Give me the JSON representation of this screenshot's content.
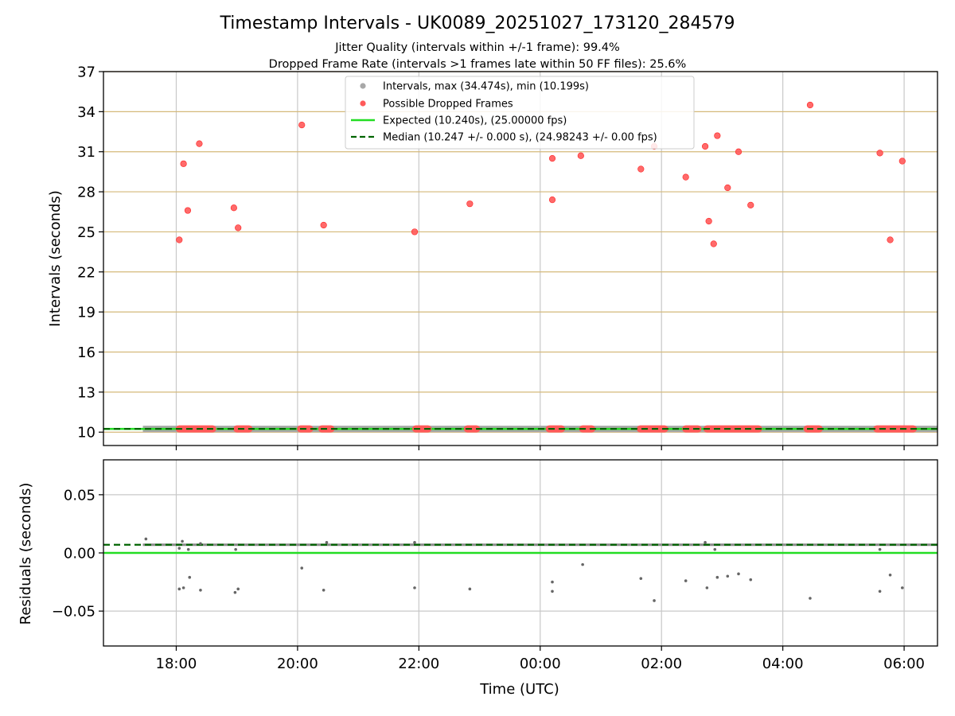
{
  "title": "Timestamp Intervals - UK0089_20251027_173120_284579",
  "subtitle_jitter": "Jitter Quality (intervals within +/-1 frame): 99.4%",
  "subtitle_dropped": "Dropped Frame Rate (intervals >1 frames late within 50 FF files): 25.6%",
  "colors": {
    "dropped": "#ff5a5a",
    "interval": "#a8a8a8",
    "expected": "#22dd22",
    "median": "#006400",
    "grid_h_top": "#d4b97a",
    "grid": "#c8c8c8",
    "residual_point": "#666666"
  },
  "chart_data": [
    {
      "id": "intervals",
      "type": "scatter",
      "ylabel": "Intervals (seconds)",
      "ylim": [
        9,
        37
      ],
      "yticks": [
        "10",
        "13",
        "16",
        "19",
        "22",
        "25",
        "28",
        "31",
        "34",
        "37"
      ],
      "ytick_values": [
        10,
        13,
        16,
        19,
        22,
        25,
        28,
        31,
        34,
        37
      ],
      "xlim": [
        -7.2,
        6.55
      ],
      "xtick_values": [
        -6,
        -4,
        -2,
        0,
        2,
        4,
        6
      ],
      "grid": "vertical and horizontal",
      "legend": {
        "placement": "top-center",
        "entries": [
          "Intervals, max (34.474s), min (10.199s)",
          "Possible Dropped Frames",
          "Expected (10.240s), (25.00000 fps)",
          "Median (10.247 +/- 0.000 s), (24.98243 +/- 0.00 fps)"
        ]
      },
      "expected_line": 10.24,
      "median_line": 10.247,
      "interval_baseline": {
        "y": 10.247,
        "x_start": -6.55,
        "x_end": 6.55
      },
      "dropped_high": [
        {
          "x": -5.95,
          "y": 24.4
        },
        {
          "x": -5.88,
          "y": 30.1
        },
        {
          "x": -5.81,
          "y": 26.6
        },
        {
          "x": -5.62,
          "y": 31.6
        },
        {
          "x": -5.05,
          "y": 26.8
        },
        {
          "x": -4.98,
          "y": 25.3
        },
        {
          "x": -3.93,
          "y": 33.0
        },
        {
          "x": -3.57,
          "y": 25.5
        },
        {
          "x": -2.07,
          "y": 25.0
        },
        {
          "x": -1.16,
          "y": 27.1
        },
        {
          "x": 0.2,
          "y": 30.5
        },
        {
          "x": 0.2,
          "y": 27.4
        },
        {
          "x": 0.67,
          "y": 30.7
        },
        {
          "x": 1.66,
          "y": 29.7
        },
        {
          "x": 1.88,
          "y": 31.4
        },
        {
          "x": 2.4,
          "y": 29.1
        },
        {
          "x": 2.72,
          "y": 31.4
        },
        {
          "x": 2.78,
          "y": 25.8
        },
        {
          "x": 2.86,
          "y": 24.1
        },
        {
          "x": 2.92,
          "y": 32.2
        },
        {
          "x": 3.09,
          "y": 28.3
        },
        {
          "x": 3.27,
          "y": 31.0
        },
        {
          "x": 3.47,
          "y": 27.0
        },
        {
          "x": 4.45,
          "y": 34.5
        },
        {
          "x": 5.6,
          "y": 30.9
        },
        {
          "x": 5.77,
          "y": 24.4
        },
        {
          "x": 5.97,
          "y": 30.3
        }
      ],
      "dropped_baseline_clusters": [
        [
          -5.95,
          -5.4
        ],
        [
          -5.0,
          -4.8
        ],
        [
          -3.95,
          -3.8
        ],
        [
          -3.6,
          -3.45
        ],
        [
          -2.05,
          -1.85
        ],
        [
          -1.2,
          -1.05
        ],
        [
          0.15,
          0.35
        ],
        [
          0.7,
          0.85
        ],
        [
          1.65,
          2.05
        ],
        [
          2.4,
          2.6
        ],
        [
          2.75,
          3.6
        ],
        [
          4.4,
          4.6
        ],
        [
          5.55,
          6.15
        ]
      ]
    },
    {
      "id": "residuals",
      "type": "scatter",
      "ylabel": "Residuals (seconds)",
      "xlabel": "Time (UTC)",
      "ylim": [
        -0.08,
        0.08
      ],
      "yticks": [
        "0.05",
        "0.00",
        "−0.05"
      ],
      "ytick_values": [
        0.05,
        0.0,
        -0.05
      ],
      "xlim": [
        -7.2,
        6.55
      ],
      "xticks": [
        "18:00",
        "20:00",
        "22:00",
        "00:00",
        "02:00",
        "04:00",
        "06:00"
      ],
      "xtick_values": [
        -6,
        -4,
        -2,
        0,
        2,
        4,
        6
      ],
      "expected_line": 0.0,
      "median_line": 0.007,
      "cluster_band": {
        "y": 0.007,
        "x_start": -6.55,
        "x_end": 6.55
      },
      "points": [
        {
          "x": -6.5,
          "y": 0.012
        },
        {
          "x": -5.95,
          "y": 0.004
        },
        {
          "x": -5.9,
          "y": 0.01
        },
        {
          "x": -5.8,
          "y": 0.003
        },
        {
          "x": -5.6,
          "y": 0.008
        },
        {
          "x": -5.02,
          "y": 0.003
        },
        {
          "x": -3.52,
          "y": 0.009
        },
        {
          "x": -2.07,
          "y": 0.009
        },
        {
          "x": 2.72,
          "y": 0.009
        },
        {
          "x": 2.88,
          "y": 0.003
        },
        {
          "x": 5.6,
          "y": 0.003
        },
        {
          "x": -5.95,
          "y": -0.031
        },
        {
          "x": -5.88,
          "y": -0.03
        },
        {
          "x": -5.78,
          "y": -0.021
        },
        {
          "x": -5.6,
          "y": -0.032
        },
        {
          "x": -5.03,
          "y": -0.034
        },
        {
          "x": -4.98,
          "y": -0.031
        },
        {
          "x": -3.93,
          "y": -0.013
        },
        {
          "x": -3.57,
          "y": -0.032
        },
        {
          "x": -2.07,
          "y": -0.03
        },
        {
          "x": -1.16,
          "y": -0.031
        },
        {
          "x": 0.2,
          "y": -0.025
        },
        {
          "x": 0.2,
          "y": -0.033
        },
        {
          "x": 0.7,
          "y": -0.01
        },
        {
          "x": 1.66,
          "y": -0.022
        },
        {
          "x": 1.88,
          "y": -0.041
        },
        {
          "x": 2.4,
          "y": -0.024
        },
        {
          "x": 2.75,
          "y": -0.03
        },
        {
          "x": 2.92,
          "y": -0.021
        },
        {
          "x": 3.09,
          "y": -0.02
        },
        {
          "x": 3.27,
          "y": -0.018
        },
        {
          "x": 3.47,
          "y": -0.023
        },
        {
          "x": 4.45,
          "y": -0.039
        },
        {
          "x": 5.6,
          "y": -0.033
        },
        {
          "x": 5.77,
          "y": -0.019
        },
        {
          "x": 5.97,
          "y": -0.03
        }
      ]
    }
  ]
}
